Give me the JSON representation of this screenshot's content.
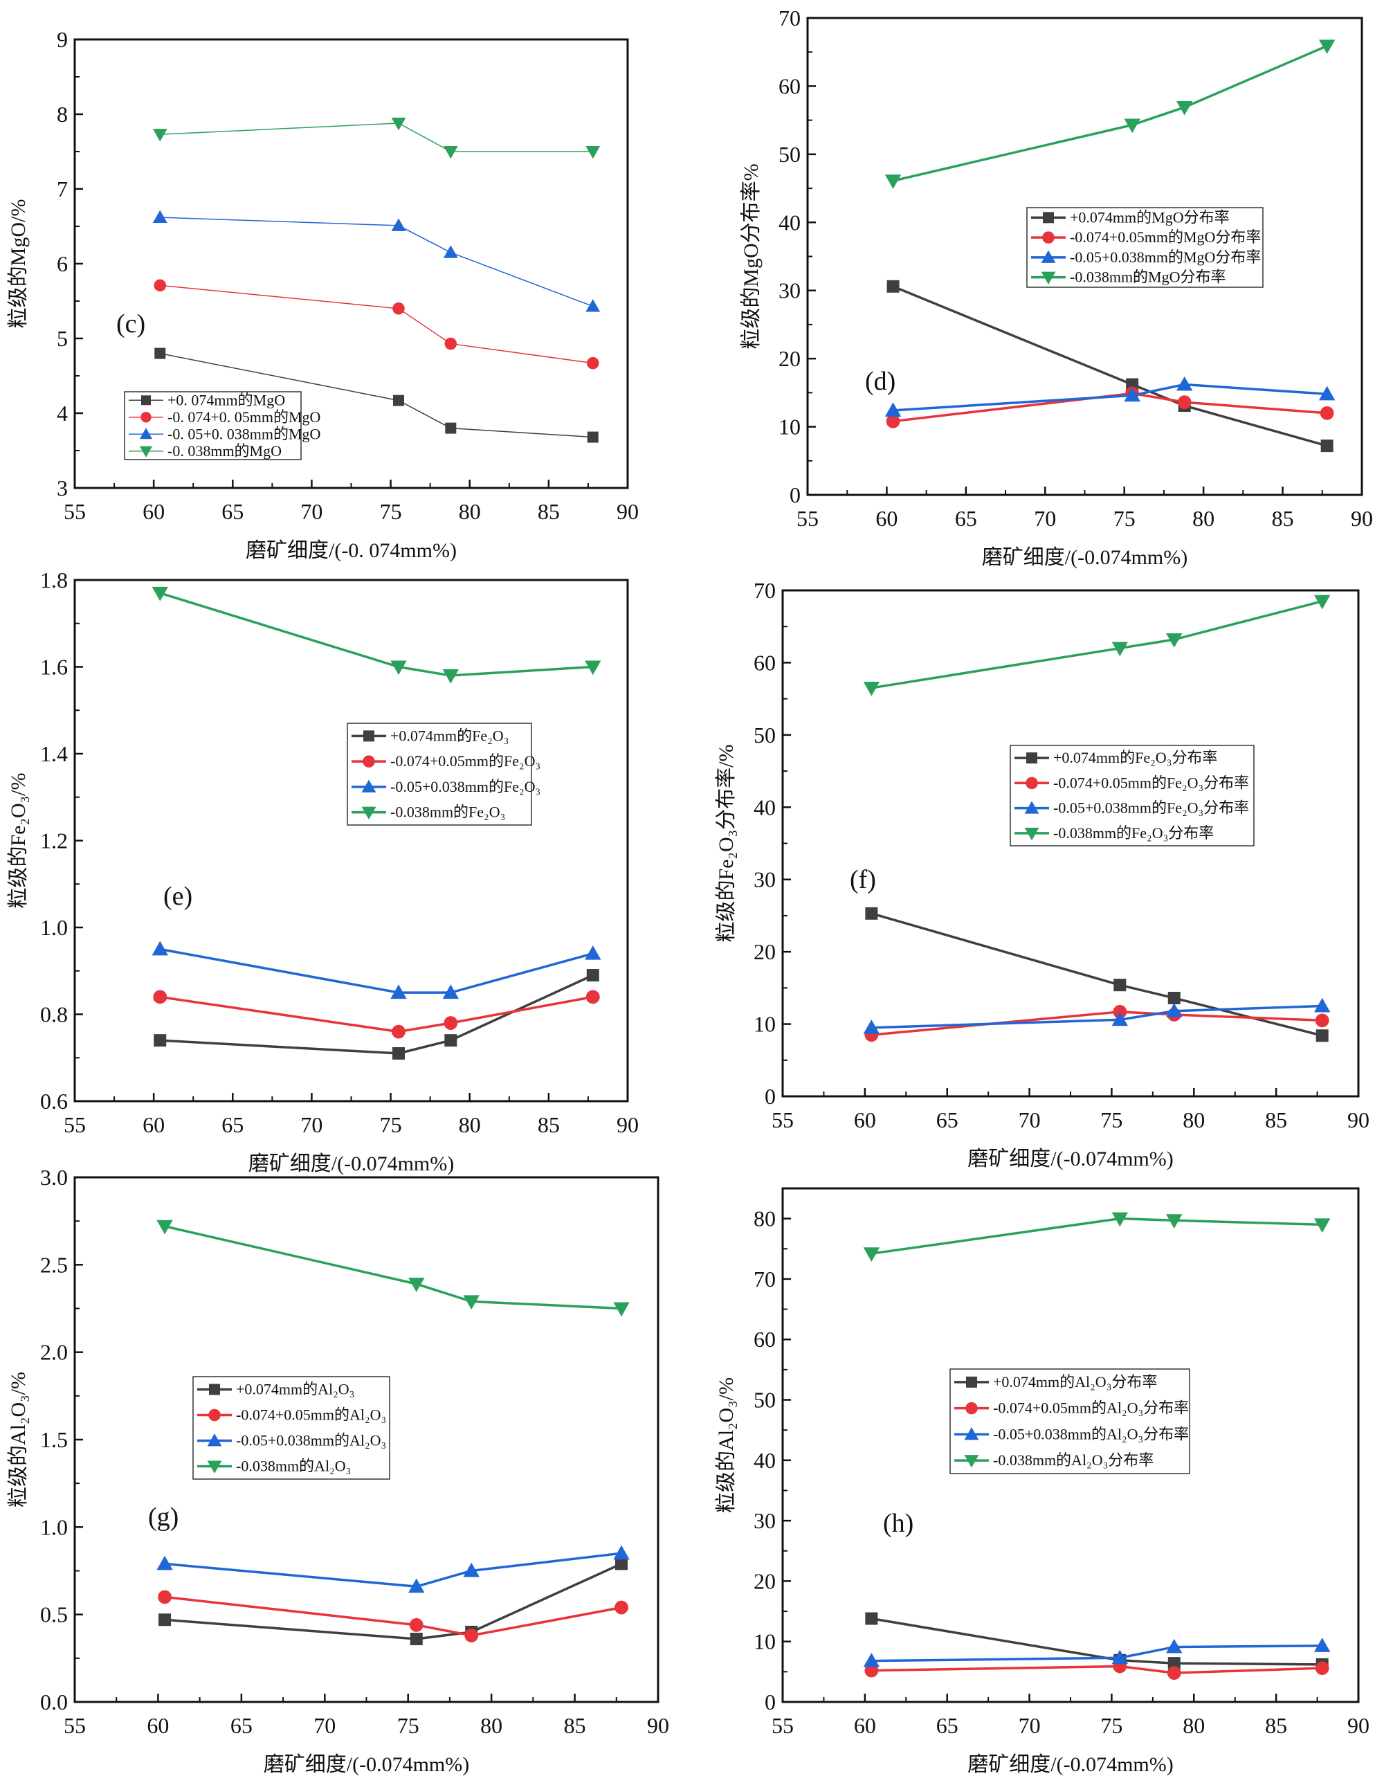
{
  "colors": {
    "black": "#3f3f3f",
    "red": "#e8333a",
    "blue": "#1f66d6",
    "green": "#2aa15a"
  },
  "x_values": [
    60.4,
    75.5,
    78.8,
    87.8
  ],
  "chart_data": [
    {
      "type": "line",
      "panel_label": "(c)",
      "xlabel": "磨矿细度/(-0. 074mm%)",
      "ylabel": "粒级的MgO/%",
      "xlim": [
        55,
        90
      ],
      "ylim": [
        3,
        9
      ],
      "xticks": [
        55,
        60,
        65,
        70,
        75,
        80,
        85,
        90
      ],
      "yticks": [
        3,
        4,
        5,
        6,
        7,
        8,
        9
      ],
      "legend": "lower-left",
      "series": [
        {
          "name": "+0. 074mm的MgO",
          "marker": "square",
          "color": "#3f3f3f",
          "values": [
            4.8,
            4.17,
            3.8,
            3.68
          ]
        },
        {
          "name": "-0. 074+0. 05mm的MgO",
          "marker": "circle",
          "color": "#e8333a",
          "values": [
            5.71,
            5.4,
            4.93,
            4.67
          ]
        },
        {
          "name": "-0. 05+0. 038mm的MgO",
          "marker": "triangle-up",
          "color": "#1f66d6",
          "values": [
            6.62,
            6.51,
            6.15,
            5.43
          ]
        },
        {
          "name": "-0. 038mm的MgO",
          "marker": "triangle-down",
          "color": "#2aa15a",
          "values": [
            7.73,
            7.88,
            7.5,
            7.5
          ]
        }
      ]
    },
    {
      "type": "line",
      "panel_label": "(d)",
      "xlabel": "磨矿细度/(-0.074mm%)",
      "ylabel": "粒级的MgO分布率%",
      "xlim": [
        55,
        90
      ],
      "ylim": [
        0,
        70
      ],
      "xticks": [
        55,
        60,
        65,
        70,
        75,
        80,
        85,
        90
      ],
      "yticks": [
        0,
        10,
        20,
        30,
        40,
        50,
        60,
        70
      ],
      "legend": "center-right",
      "series": [
        {
          "name": "+0.074mm的MgO分布率",
          "marker": "square",
          "color": "#3f3f3f",
          "values": [
            30.6,
            16.2,
            13.1,
            7.2
          ]
        },
        {
          "name": "-0.074+0.05mm的MgO分布率",
          "marker": "circle",
          "color": "#e8333a",
          "values": [
            10.8,
            14.9,
            13.6,
            12.0
          ]
        },
        {
          "name": "-0.05+0.038mm的MgO分布率",
          "marker": "triangle-up",
          "color": "#1f66d6",
          "values": [
            12.4,
            14.6,
            16.2,
            14.8
          ]
        },
        {
          "name": "-0.038mm的MgO分布率",
          "marker": "triangle-down",
          "color": "#2aa15a",
          "values": [
            46.1,
            54.3,
            56.9,
            65.9
          ]
        }
      ]
    },
    {
      "type": "line",
      "panel_label": "(e)",
      "xlabel": "磨矿细度/(-0.074mm%)",
      "ylabel": "粒级的Fe₂O₃/%",
      "xlim": [
        55,
        90
      ],
      "ylim": [
        0.6,
        1.8
      ],
      "xticks": [
        55,
        60,
        65,
        70,
        75,
        80,
        85,
        90
      ],
      "yticks": [
        0.6,
        0.8,
        1.0,
        1.2,
        1.4,
        1.6,
        1.8
      ],
      "legend": "center",
      "series": [
        {
          "name": "+0.074mm的Fe₂O₃",
          "marker": "square",
          "color": "#3f3f3f",
          "values": [
            0.74,
            0.71,
            0.74,
            0.89
          ]
        },
        {
          "name": "-0.074+0.05mm的Fe₂O₃",
          "marker": "circle",
          "color": "#e8333a",
          "values": [
            0.84,
            0.76,
            0.78,
            0.84
          ]
        },
        {
          "name": "-0.05+0.038mm的Fe₂O₃",
          "marker": "triangle-up",
          "color": "#1f66d6",
          "values": [
            0.95,
            0.85,
            0.85,
            0.94
          ]
        },
        {
          "name": "-0.038mm的Fe₂O₃",
          "marker": "triangle-down",
          "color": "#2aa15a",
          "values": [
            1.77,
            1.6,
            1.58,
            1.6
          ]
        }
      ]
    },
    {
      "type": "line",
      "panel_label": "(f)",
      "xlabel": "磨矿细度/(-0.074mm%)",
      "ylabel": "粒级的Fe₂O₃分布率/%",
      "xlim": [
        55,
        90
      ],
      "ylim": [
        0,
        70
      ],
      "xticks": [
        55,
        60,
        65,
        70,
        75,
        80,
        85,
        90
      ],
      "yticks": [
        0,
        10,
        20,
        30,
        40,
        50,
        60,
        70
      ],
      "legend": "center-right",
      "series": [
        {
          "name": "+0.074mm的Fe₂O₃分布率",
          "marker": "square",
          "color": "#3f3f3f",
          "values": [
            25.3,
            15.4,
            13.6,
            8.4
          ]
        },
        {
          "name": "-0.074+0.05mm的Fe₂O₃分布率",
          "marker": "circle",
          "color": "#e8333a",
          "values": [
            8.5,
            11.7,
            11.3,
            10.5
          ]
        },
        {
          "name": "-0.05+0.038mm的Fe₂O₃分布率",
          "marker": "triangle-up",
          "color": "#1f66d6",
          "values": [
            9.5,
            10.6,
            11.8,
            12.5
          ]
        },
        {
          "name": "-0.038mm的Fe₂O₃分布率",
          "marker": "triangle-down",
          "color": "#2aa15a",
          "values": [
            56.5,
            62.0,
            63.2,
            68.5
          ]
        }
      ]
    },
    {
      "type": "line",
      "panel_label": "(g)",
      "xlabel": "磨矿细度/(-0.074mm%)",
      "ylabel": "粒级的Al₂O₃/%",
      "xlim": [
        55,
        90
      ],
      "ylim": [
        0,
        3.0
      ],
      "xticks": [
        55,
        60,
        65,
        70,
        75,
        80,
        85,
        90
      ],
      "yticks": [
        0.0,
        0.5,
        1.0,
        1.5,
        2.0,
        2.5,
        3.0
      ],
      "legend": "center-left",
      "series": [
        {
          "name": "+0.074mm的Al₂O₃",
          "marker": "square",
          "color": "#3f3f3f",
          "values": [
            0.47,
            0.36,
            0.4,
            0.79
          ]
        },
        {
          "name": "-0.074+0.05mm的Al₂O₃",
          "marker": "circle",
          "color": "#e8333a",
          "values": [
            0.6,
            0.44,
            0.38,
            0.54
          ]
        },
        {
          "name": "-0.05+0.038mm的Al₂O₃",
          "marker": "triangle-up",
          "color": "#1f66d6",
          "values": [
            0.79,
            0.66,
            0.75,
            0.85
          ]
        },
        {
          "name": "-0.038mm的Al₂O₃",
          "marker": "triangle-down",
          "color": "#2aa15a",
          "values": [
            2.72,
            2.39,
            2.29,
            2.25
          ]
        }
      ]
    },
    {
      "type": "line",
      "panel_label": "(h)",
      "xlabel": "磨矿细度/(-0.074mm%)",
      "ylabel": "粒级的Al₂O₃/%",
      "xlim": [
        55,
        90
      ],
      "ylim": [
        0,
        85
      ],
      "xticks": [
        55,
        60,
        65,
        70,
        75,
        80,
        85,
        90
      ],
      "yticks": [
        0,
        10,
        20,
        30,
        40,
        50,
        60,
        70,
        80
      ],
      "legend": "center",
      "series": [
        {
          "name": "+0.074mm的Al₂O₃分布率",
          "marker": "square",
          "color": "#3f3f3f",
          "values": [
            13.8,
            6.9,
            6.4,
            6.2
          ]
        },
        {
          "name": "-0.074+0.05mm的Al₂O₃分布率",
          "marker": "circle",
          "color": "#e8333a",
          "values": [
            5.2,
            5.9,
            4.8,
            5.6
          ]
        },
        {
          "name": "-0.05+0.038mm的Al₂O₃分布率",
          "marker": "triangle-up",
          "color": "#1f66d6",
          "values": [
            6.8,
            7.3,
            9.1,
            9.3
          ]
        },
        {
          "name": "-0.038mm的Al₂O₃分布率",
          "marker": "triangle-down",
          "color": "#2aa15a",
          "values": [
            74.2,
            80.0,
            79.7,
            79.0
          ]
        }
      ]
    }
  ]
}
